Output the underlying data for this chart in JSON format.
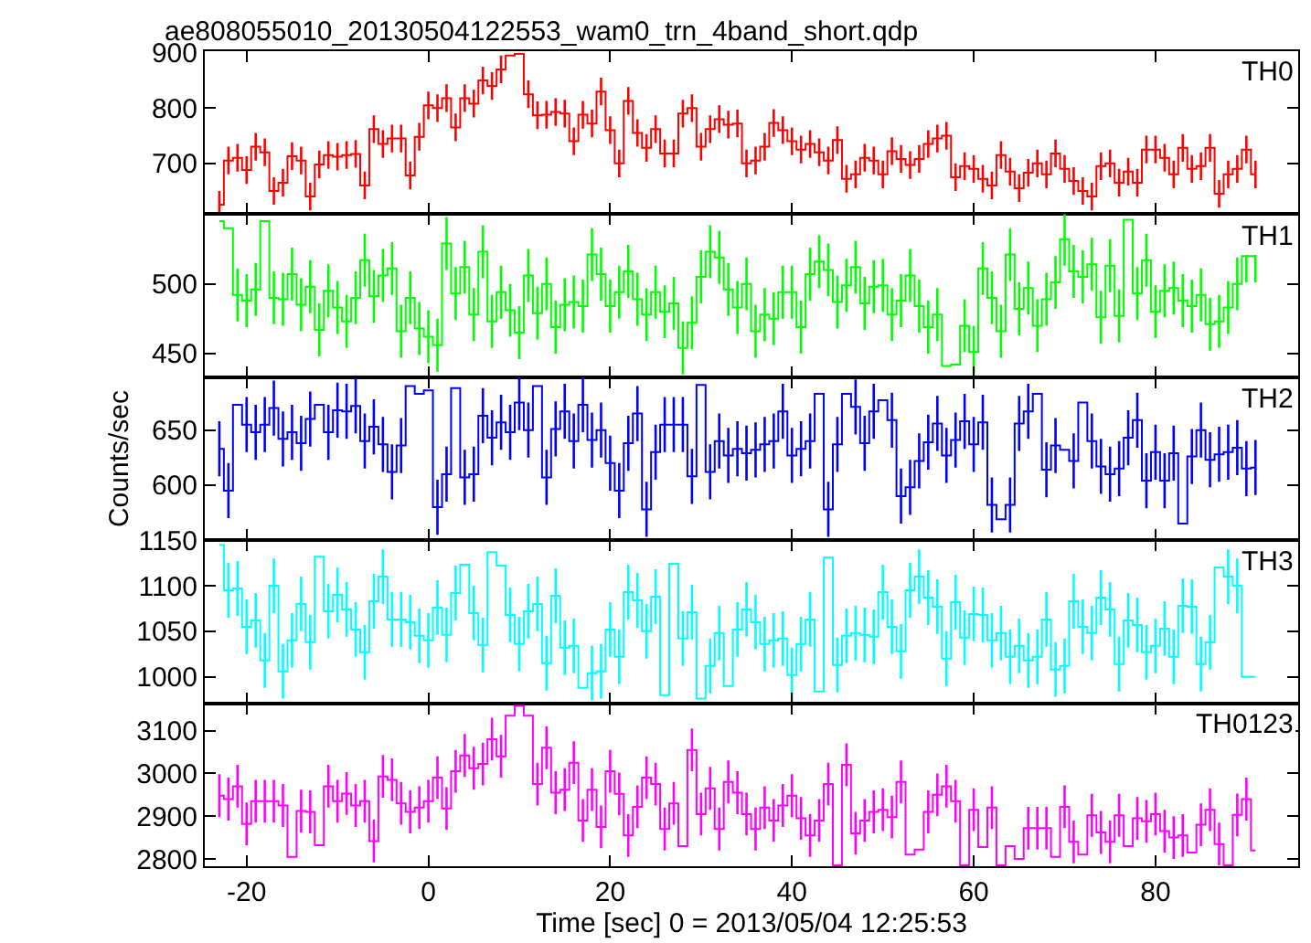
{
  "chart_data": [
    {
      "type": "step",
      "title": "ae808055010_20130504122553_wam0_trn_4band_short.qdp",
      "annotations": [
        "TH0"
      ],
      "tick_labels": "y",
      "xlim": [
        -24.6,
        95.7
      ],
      "xticks": [
        -20,
        0,
        20,
        40,
        60,
        80
      ],
      "ylim": [
        608,
        903
      ],
      "yticks": [
        700,
        800,
        900
      ],
      "x": [
        -23,
        -22,
        -21,
        -20,
        -19,
        -18,
        -17,
        -16,
        -15,
        -14,
        -13,
        -12,
        -11,
        -10,
        -9,
        -8,
        -7,
        -6,
        -5,
        -4,
        -3,
        -2,
        -1,
        0,
        1,
        2,
        3,
        4,
        5,
        6,
        7,
        8,
        9,
        10,
        11,
        12,
        13,
        14,
        15,
        16,
        17,
        18,
        19,
        20,
        21,
        22,
        23,
        24,
        25,
        26,
        27,
        28,
        29,
        30,
        31,
        32,
        33,
        34,
        35,
        36,
        37,
        38,
        39,
        40,
        41,
        42,
        43,
        44,
        45,
        46,
        47,
        48,
        49,
        50,
        51,
        52,
        53,
        54,
        55,
        56,
        57,
        58,
        59,
        60,
        61,
        62,
        63,
        64,
        65,
        66,
        67,
        68,
        69,
        70,
        71,
        72,
        73,
        74,
        75,
        76,
        77,
        78,
        79,
        80,
        81,
        82,
        83,
        84,
        85,
        86,
        87,
        88,
        89,
        90,
        91
      ],
      "series": [
        {
          "color": "#ff0000",
          "values": [
            625,
            705,
            710,
            688,
            730,
            720,
            650,
            665,
            713,
            705,
            640,
            698,
            715,
            712,
            715,
            717,
            660,
            762,
            735,
            745,
            745,
            678,
            748,
            805,
            800,
            818,
            765,
            818,
            808,
            850,
            840,
            870,
            895,
            898,
            825,
            787,
            788,
            793,
            790,
            740,
            788,
            772,
            830,
            760,
            700,
            813,
            755,
            728,
            762,
            718,
            718,
            790,
            800,
            730,
            762,
            780,
            770,
            772,
            700,
            705,
            730,
            773,
            760,
            740,
            725,
            735,
            720,
            705,
            742,
            672,
            680,
            710,
            705,
            680,
            722,
            708,
            697,
            708,
            735,
            745,
            750,
            675,
            695,
            690,
            672,
            660,
            715,
            685,
            655,
            683,
            700,
            680,
            718,
            690,
            668,
            650,
            640,
            695,
            700,
            665,
            685,
            665,
            725,
            725,
            710,
            680,
            728,
            690,
            695,
            728,
            645,
            680,
            690,
            725,
            680
          ],
          "errors": [
            25,
            25,
            25,
            25,
            25,
            25,
            25,
            25,
            25,
            25,
            25,
            25,
            25,
            25,
            25,
            25,
            25,
            25,
            25,
            25,
            25,
            25,
            25,
            25,
            25,
            25,
            25,
            25,
            25,
            25,
            25,
            25,
            null,
            null,
            25,
            25,
            25,
            25,
            25,
            25,
            25,
            25,
            25,
            25,
            25,
            25,
            25,
            25,
            25,
            25,
            25,
            25,
            25,
            25,
            25,
            25,
            25,
            25,
            25,
            25,
            25,
            25,
            25,
            25,
            25,
            25,
            25,
            25,
            25,
            25,
            25,
            25,
            25,
            25,
            25,
            25,
            25,
            25,
            25,
            25,
            25,
            25,
            25,
            25,
            25,
            25,
            25,
            25,
            25,
            25,
            25,
            25,
            25,
            25,
            25,
            25,
            25,
            25,
            25,
            25,
            25,
            25,
            25,
            25,
            25,
            25,
            25,
            25,
            25,
            25,
            25,
            25,
            25,
            25,
            25
          ]
        }
      ]
    },
    {
      "type": "step",
      "annotations": [
        "TH1"
      ],
      "tick_labels": "y",
      "xlim": [
        -24.6,
        95.7
      ],
      "xticks": [
        -20,
        0,
        20,
        40,
        60,
        80
      ],
      "ylim": [
        433,
        550
      ],
      "yticks": [
        450,
        500
      ],
      "x": [
        -23,
        -22,
        -21,
        -20,
        -19,
        -18,
        -17,
        -16,
        -15,
        -14,
        -13,
        -12,
        -11,
        -10,
        -9,
        -8,
        -7,
        -6,
        -5,
        -4,
        -3,
        -2,
        -1,
        0,
        1,
        2,
        3,
        4,
        5,
        6,
        7,
        8,
        9,
        10,
        11,
        12,
        13,
        14,
        15,
        16,
        17,
        18,
        19,
        20,
        21,
        22,
        23,
        24,
        25,
        26,
        27,
        28,
        29,
        30,
        31,
        32,
        33,
        34,
        35,
        36,
        37,
        38,
        39,
        40,
        41,
        42,
        43,
        44,
        45,
        46,
        47,
        48,
        49,
        50,
        51,
        52,
        53,
        54,
        55,
        56,
        57,
        58,
        59,
        60,
        61,
        62,
        63,
        64,
        65,
        66,
        67,
        68,
        69,
        70,
        71,
        72,
        73,
        74,
        75,
        76,
        77,
        78,
        79,
        80,
        81,
        82,
        83,
        84,
        85,
        86,
        87,
        88,
        89,
        90,
        91
      ],
      "series": [
        {
          "color": "#00ff00",
          "values": [
            545,
            540,
            492,
            488,
            496,
            545,
            490,
            489,
            507,
            485,
            498,
            467,
            495,
            483,
            473,
            490,
            517,
            491,
            506,
            511,
            466,
            490,
            468,
            462,
            456,
            529,
            493,
            512,
            478,
            523,
            473,
            494,
            481,
            465,
            506,
            479,
            500,
            469,
            485,
            487,
            484,
            521,
            507,
            484,
            494,
            509,
            489,
            478,
            494,
            480,
            486,
            454,
            472,
            505,
            523,
            519,
            496,
            483,
            500,
            466,
            478,
            475,
            494,
            494,
            469,
            507,
            516,
            510,
            487,
            499,
            512,
            486,
            498,
            499,
            478,
            488,
            506,
            484,
            469,
            478,
            441,
            442,
            470,
            451,
            511,
            490,
            466,
            521,
            482,
            497,
            470,
            489,
            501,
            532,
            509,
            505,
            514,
            476,
            513,
            477,
            546,
            493,
            517,
            480,
            495,
            497,
            488,
            484,
            492,
            471,
            473,
            483,
            500,
            520,
            520
          ],
          "errors": [
            null,
            null,
            19,
            19,
            19,
            null,
            19,
            19,
            19,
            19,
            19,
            19,
            19,
            19,
            19,
            19,
            19,
            19,
            19,
            19,
            19,
            19,
            19,
            19,
            19,
            19,
            19,
            19,
            19,
            19,
            19,
            19,
            19,
            19,
            19,
            19,
            19,
            19,
            19,
            19,
            19,
            19,
            19,
            19,
            19,
            19,
            19,
            19,
            19,
            19,
            19,
            19,
            19,
            19,
            19,
            19,
            19,
            19,
            19,
            19,
            19,
            19,
            19,
            19,
            19,
            19,
            19,
            19,
            19,
            19,
            19,
            19,
            19,
            19,
            19,
            19,
            19,
            19,
            19,
            19,
            null,
            null,
            19,
            19,
            19,
            19,
            19,
            19,
            19,
            19,
            19,
            19,
            19,
            19,
            19,
            19,
            19,
            19,
            19,
            19,
            null,
            19,
            19,
            19,
            19,
            19,
            19,
            19,
            19,
            19,
            19,
            19,
            19,
            19,
            19
          ]
        }
      ]
    },
    {
      "type": "step",
      "annotations": [
        "TH2"
      ],
      "tick_labels": "y",
      "ylabel": "Counts/sec",
      "xlim": [
        -24.6,
        95.7
      ],
      "xticks": [
        -20,
        0,
        20,
        40,
        60,
        80
      ],
      "ylim": [
        550,
        698
      ],
      "yticks": [
        600,
        650
      ],
      "x": [
        -23,
        -22,
        -21,
        -20,
        -19,
        -18,
        -17,
        -16,
        -15,
        -14,
        -13,
        -12,
        -11,
        -10,
        -9,
        -8,
        -7,
        -6,
        -5,
        -4,
        -3,
        -2,
        -1,
        0,
        1,
        2,
        3,
        4,
        5,
        6,
        7,
        8,
        9,
        10,
        11,
        12,
        13,
        14,
        15,
        16,
        17,
        18,
        19,
        20,
        21,
        22,
        23,
        24,
        25,
        26,
        27,
        28,
        29,
        30,
        31,
        32,
        33,
        34,
        35,
        36,
        37,
        38,
        39,
        40,
        41,
        42,
        43,
        44,
        45,
        46,
        47,
        48,
        49,
        50,
        51,
        52,
        53,
        54,
        55,
        56,
        57,
        58,
        59,
        60,
        61,
        62,
        63,
        64,
        65,
        66,
        67,
        68,
        69,
        70,
        71,
        72,
        73,
        74,
        75,
        76,
        77,
        78,
        79,
        80,
        81,
        82,
        83,
        84,
        85,
        86,
        87,
        88,
        89,
        90,
        91
      ],
      "series": [
        {
          "color": "#0000ff",
          "values": [
            633,
            595,
            673,
            655,
            648,
            655,
            670,
            642,
            648,
            638,
            660,
            673,
            648,
            668,
            667,
            672,
            640,
            653,
            637,
            612,
            636,
            690,
            683,
            686,
            580,
            610,
            688,
            607,
            610,
            663,
            643,
            657,
            648,
            675,
            650,
            690,
            607,
            651,
            667,
            640,
            673,
            641,
            650,
            620,
            595,
            638,
            665,
            578,
            630,
            655,
            655,
            655,
            608,
            691,
            612,
            640,
            627,
            633,
            629,
            632,
            637,
            640,
            667,
            627,
            633,
            640,
            683,
            578,
            637,
            683,
            671,
            638,
            667,
            677,
            659,
            590,
            598,
            622,
            639,
            656,
            627,
            641,
            658,
            637,
            657,
            582,
            569,
            582,
            656,
            667,
            683,
            614,
            636,
            632,
            622,
            675,
            640,
            617,
            610,
            615,
            643,
            659,
            604,
            630,
            604,
            629,
            565,
            626,
            650,
            623,
            628,
            630,
            634,
            615,
            616
          ],
          "errors": [
            25,
            25,
            null,
            25,
            25,
            25,
            25,
            25,
            25,
            25,
            25,
            null,
            25,
            25,
            25,
            25,
            25,
            25,
            25,
            25,
            25,
            null,
            null,
            null,
            25,
            25,
            null,
            25,
            25,
            25,
            25,
            25,
            25,
            25,
            25,
            null,
            25,
            25,
            25,
            25,
            25,
            25,
            25,
            25,
            25,
            25,
            25,
            25,
            25,
            25,
            25,
            25,
            25,
            null,
            25,
            25,
            25,
            25,
            25,
            25,
            25,
            25,
            25,
            25,
            25,
            25,
            null,
            25,
            25,
            null,
            25,
            25,
            25,
            null,
            25,
            25,
            25,
            25,
            25,
            25,
            25,
            25,
            25,
            25,
            25,
            25,
            null,
            25,
            25,
            25,
            null,
            25,
            25,
            null,
            25,
            null,
            25,
            25,
            25,
            25,
            25,
            25,
            25,
            25,
            25,
            25,
            null,
            25,
            25,
            25,
            25,
            25,
            25,
            25,
            25
          ]
        }
      ]
    },
    {
      "type": "step",
      "annotations": [
        "TH3"
      ],
      "tick_labels": "y",
      "xlim": [
        -24.6,
        95.7
      ],
      "xticks": [
        -20,
        0,
        20,
        40,
        60,
        80
      ],
      "ylim": [
        971,
        1150
      ],
      "yticks": [
        1000,
        1050,
        1100,
        1150
      ],
      "x": [
        -23,
        -22,
        -21,
        -20,
        -19,
        -18,
        -17,
        -16,
        -15,
        -14,
        -13,
        -12,
        -11,
        -10,
        -9,
        -8,
        -7,
        -6,
        -5,
        -4,
        -3,
        -2,
        -1,
        0,
        1,
        2,
        3,
        4,
        5,
        6,
        7,
        8,
        9,
        10,
        11,
        12,
        13,
        14,
        15,
        16,
        17,
        18,
        19,
        20,
        21,
        22,
        23,
        24,
        25,
        26,
        27,
        28,
        29,
        30,
        31,
        32,
        33,
        34,
        35,
        36,
        37,
        38,
        39,
        40,
        41,
        42,
        43,
        44,
        45,
        46,
        47,
        48,
        49,
        50,
        51,
        52,
        53,
        54,
        55,
        56,
        57,
        58,
        59,
        60,
        61,
        62,
        63,
        64,
        65,
        66,
        67,
        68,
        69,
        70,
        71,
        72,
        73,
        74,
        75,
        76,
        77,
        78,
        79,
        80,
        81,
        82,
        83,
        84,
        85,
        86,
        87,
        88,
        89,
        90,
        91
      ],
      "series": [
        {
          "color": "#00ffff",
          "values": [
            1145,
            1095,
            1097,
            1055,
            1062,
            1018,
            1100,
            1006,
            1040,
            1080,
            1038,
            1132,
            1072,
            1090,
            1074,
            1052,
            1027,
            1083,
            1110,
            1063,
            1063,
            1060,
            1045,
            1040,
            1076,
            1046,
            1092,
            1123,
            1070,
            1035,
            1137,
            1122,
            1068,
            1036,
            1072,
            1080,
            1015,
            1089,
            1032,
            1034,
            988,
            1004,
            1006,
            1052,
            1022,
            1093,
            1084,
            1050,
            1088,
            980,
            1124,
            1042,
            1071,
            976,
            1012,
            1048,
            990,
            1052,
            1074,
            1060,
            1036,
            1040,
            1042,
            1002,
            1036,
            1063,
            984,
            1131,
            1013,
            1045,
            1048,
            1046,
            1044,
            1093,
            1055,
            1028,
            1095,
            1110,
            1087,
            1077,
            1020,
            1082,
            1043,
            1069,
            1068,
            1040,
            1048,
            1022,
            1034,
            1018,
            1022,
            1063,
            1008,
            1012,
            1083,
            1055,
            1048,
            1087,
            1074,
            1014,
            1062,
            1057,
            1027,
            1034,
            1053,
            1022,
            1078,
            1077,
            1014,
            1038,
            1120,
            1110,
            1100,
            1000,
            1000
          ],
          "errors": [
            null,
            30,
            30,
            30,
            30,
            30,
            30,
            30,
            30,
            30,
            30,
            null,
            30,
            30,
            30,
            30,
            30,
            30,
            30,
            30,
            30,
            30,
            30,
            30,
            30,
            30,
            30,
            null,
            30,
            30,
            null,
            null,
            30,
            30,
            30,
            30,
            30,
            30,
            30,
            30,
            null,
            30,
            30,
            30,
            30,
            30,
            30,
            30,
            30,
            null,
            null,
            30,
            30,
            null,
            30,
            30,
            null,
            30,
            30,
            30,
            30,
            30,
            30,
            30,
            30,
            30,
            null,
            null,
            30,
            30,
            30,
            30,
            30,
            30,
            30,
            30,
            30,
            30,
            30,
            30,
            30,
            30,
            30,
            30,
            30,
            30,
            30,
            30,
            30,
            30,
            30,
            30,
            30,
            30,
            30,
            30,
            30,
            30,
            30,
            30,
            30,
            30,
            30,
            30,
            30,
            30,
            30,
            30,
            30,
            30,
            null,
            30,
            30,
            null,
            null
          ]
        }
      ]
    },
    {
      "type": "step",
      "annotations": [
        "TH0123"
      ],
      "xlabel": "Time [sec] 0 = 2013/05/04 12:25:53",
      "xlim": [
        -24.6,
        95.7
      ],
      "xticks": [
        -20,
        0,
        20,
        40,
        60,
        80
      ],
      "ylim": [
        2783,
        3164
      ],
      "yticks": [
        2800,
        2900,
        3000,
        3100
      ],
      "x": [
        -23,
        -22,
        -21,
        -20,
        -19,
        -18,
        -17,
        -16,
        -15,
        -14,
        -13,
        -12,
        -11,
        -10,
        -9,
        -8,
        -7,
        -6,
        -5,
        -4,
        -3,
        -2,
        -1,
        0,
        1,
        2,
        3,
        4,
        5,
        6,
        7,
        8,
        9,
        10,
        11,
        12,
        13,
        14,
        15,
        16,
        17,
        18,
        19,
        20,
        21,
        22,
        23,
        24,
        25,
        26,
        27,
        28,
        29,
        30,
        31,
        32,
        33,
        34,
        35,
        36,
        37,
        38,
        39,
        40,
        41,
        42,
        43,
        44,
        45,
        46,
        47,
        48,
        49,
        50,
        51,
        52,
        53,
        54,
        55,
        56,
        57,
        58,
        59,
        60,
        61,
        62,
        63,
        64,
        65,
        66,
        67,
        68,
        69,
        70,
        71,
        72,
        73,
        74,
        75,
        76,
        77,
        78,
        79,
        80,
        81,
        82,
        83,
        84,
        85,
        86,
        87,
        88,
        89,
        90,
        91
      ],
      "series": [
        {
          "color": "#ff00ff",
          "values": [
            2948,
            2940,
            2970,
            2882,
            2935,
            2935,
            2935,
            2925,
            2805,
            2912,
            2910,
            2832,
            2970,
            2935,
            2953,
            2925,
            2935,
            2842,
            2993,
            2985,
            2930,
            2910,
            2920,
            2935,
            2990,
            2918,
            3005,
            3042,
            3012,
            3022,
            3080,
            3040,
            3135,
            3158,
            3135,
            2975,
            3060,
            2955,
            2962,
            3025,
            2890,
            2962,
            2875,
            3005,
            2952,
            2855,
            2922,
            2990,
            2975,
            2870,
            2930,
            2830,
            3055,
            2905,
            2965,
            2870,
            2980,
            2955,
            2905,
            2870,
            2920,
            2890,
            2925,
            2948,
            2895,
            2855,
            2890,
            2975,
            2785,
            3020,
            2860,
            2890,
            2910,
            2915,
            2898,
            2980,
            2810,
            2822,
            2910,
            2950,
            2970,
            2935,
            2785,
            2915,
            2828,
            2920,
            2785,
            2830,
            2800,
            2872,
            2872,
            2872,
            2805,
            2922,
            2840,
            2810,
            2902,
            2862,
            2840,
            2902,
            2830,
            2895,
            2888,
            2905,
            2865,
            2850,
            2855,
            2815,
            2880,
            2915,
            2835,
            2785,
            2903,
            2940,
            2820
          ],
          "errors": [
            50,
            50,
            50,
            50,
            50,
            50,
            50,
            50,
            null,
            50,
            50,
            null,
            50,
            50,
            50,
            50,
            50,
            50,
            50,
            50,
            50,
            50,
            50,
            50,
            50,
            50,
            50,
            50,
            50,
            50,
            50,
            50,
            null,
            null,
            null,
            50,
            50,
            50,
            50,
            50,
            50,
            50,
            50,
            50,
            50,
            50,
            50,
            50,
            50,
            50,
            50,
            null,
            50,
            50,
            50,
            50,
            50,
            50,
            50,
            50,
            50,
            50,
            50,
            50,
            50,
            50,
            50,
            50,
            null,
            50,
            50,
            50,
            50,
            50,
            50,
            50,
            null,
            null,
            50,
            50,
            50,
            50,
            null,
            50,
            null,
            50,
            null,
            null,
            null,
            50,
            50,
            50,
            null,
            50,
            50,
            null,
            50,
            50,
            50,
            50,
            null,
            50,
            50,
            50,
            50,
            50,
            50,
            null,
            50,
            50,
            50,
            null,
            50,
            50,
            null
          ]
        }
      ]
    }
  ]
}
